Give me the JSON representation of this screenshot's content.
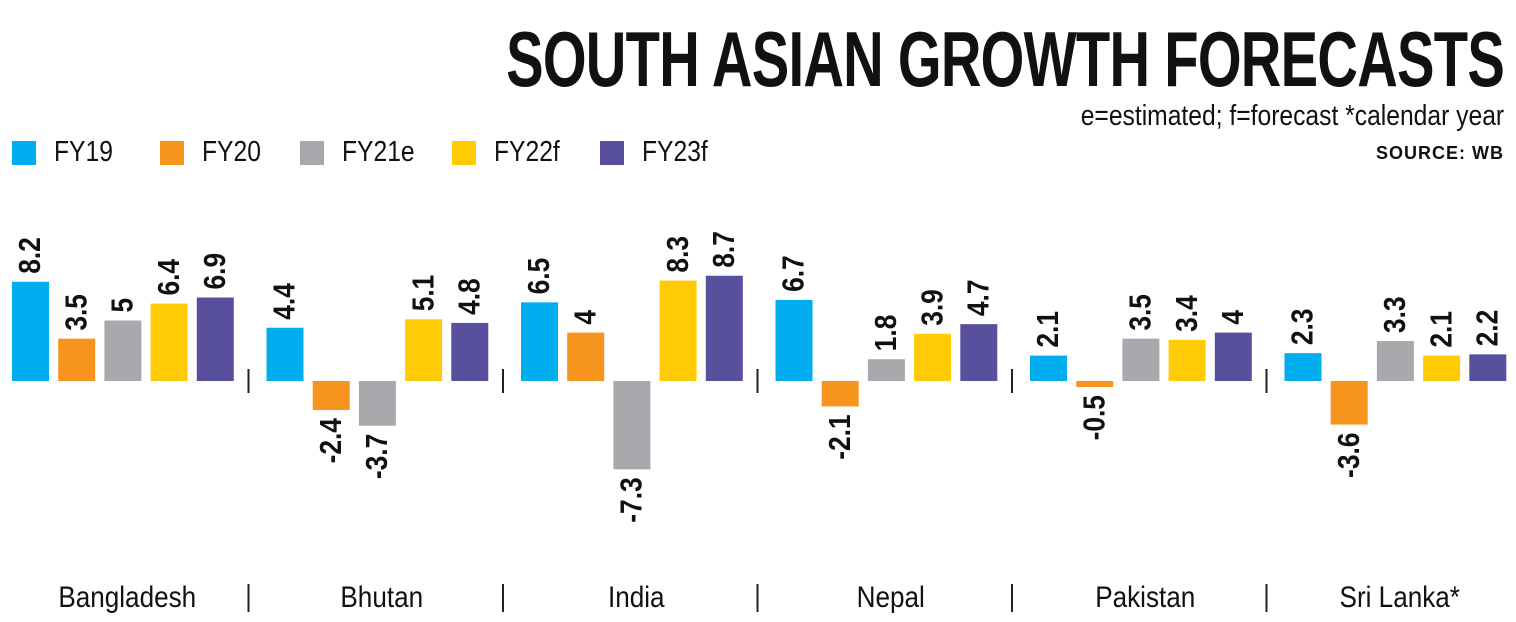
{
  "chart_data": {
    "type": "bar",
    "title": "SOUTH ASIAN GROWTH FORECASTS",
    "subtitle": "e=estimated; f=forecast *calendar year",
    "source": "SOURCE: WB",
    "categories": [
      "Bangladesh",
      "Bhutan",
      "India",
      "Nepal",
      "Pakistan",
      "Sri Lanka*"
    ],
    "series": [
      {
        "name": "FY19",
        "color": "#00AEEF",
        "values": [
          8.2,
          4.4,
          6.5,
          6.7,
          2.1,
          2.3
        ]
      },
      {
        "name": "FY20",
        "color": "#F7941D",
        "values": [
          3.5,
          -2.4,
          4,
          -2.1,
          -0.5,
          -3.6
        ]
      },
      {
        "name": "FY21e",
        "color": "#A7A9AC",
        "values": [
          5,
          -3.7,
          -7.3,
          1.8,
          3.5,
          3.3
        ]
      },
      {
        "name": "FY22f",
        "color": "#FFCB05",
        "values": [
          6.4,
          5.1,
          8.3,
          3.9,
          3.4,
          2.1
        ]
      },
      {
        "name": "FY23f",
        "color": "#58509C",
        "values": [
          6.9,
          4.8,
          8.7,
          4.7,
          4,
          2.2
        ]
      }
    ],
    "legend_position": "top-left",
    "grid": false,
    "ylim": [
      -8,
      9
    ]
  }
}
